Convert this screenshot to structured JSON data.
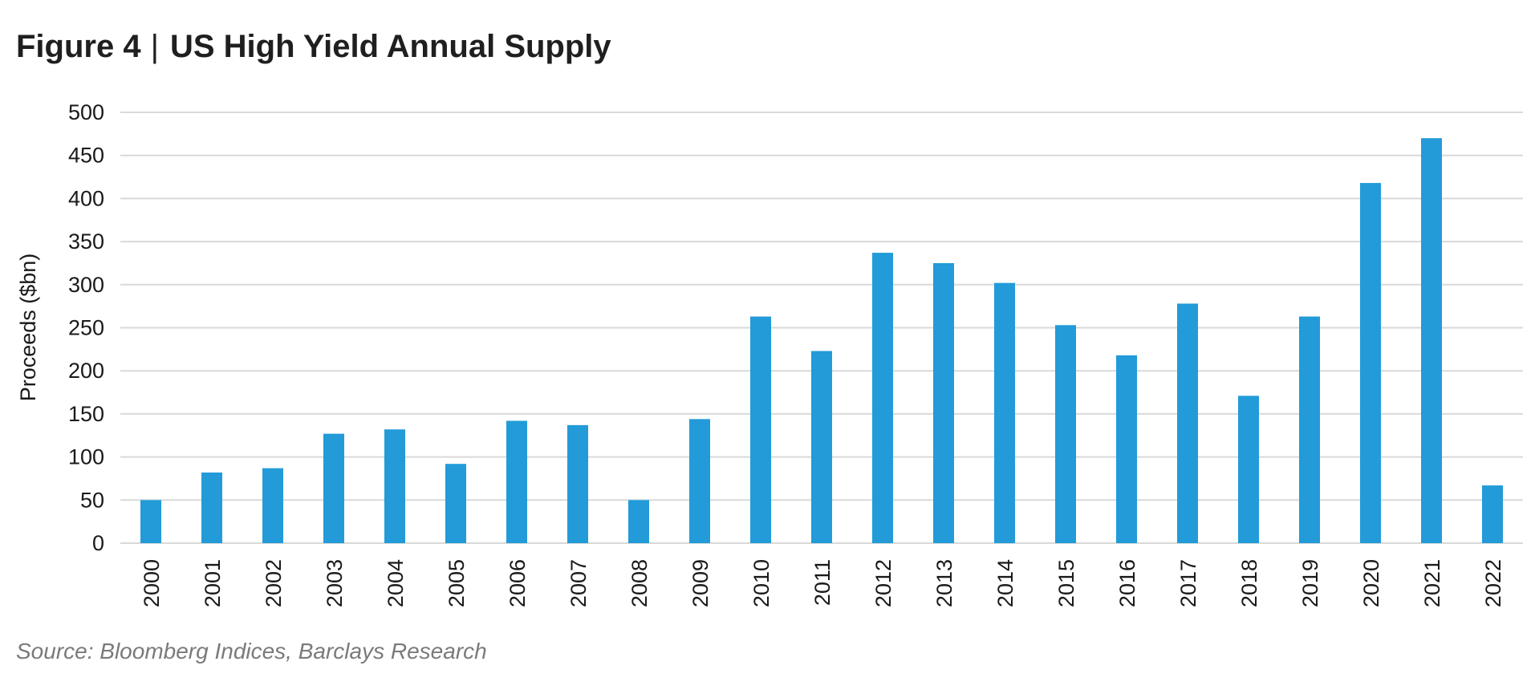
{
  "title": {
    "figure_label": "Figure 4",
    "separator": "|",
    "text": "US High Yield Annual Supply"
  },
  "source": "Source: Bloomberg Indices, Barclays Research",
  "colors": {
    "bar": "#229BD8",
    "grid": "#D9D9D9",
    "axis_text": "#1a1a1a"
  },
  "chart_data": {
    "type": "bar",
    "title": "US High Yield Annual Supply",
    "xlabel": "",
    "ylabel": "Proceeds ($bn)",
    "ylim": [
      0,
      500
    ],
    "yticks": [
      0,
      50,
      100,
      150,
      200,
      250,
      300,
      350,
      400,
      450,
      500
    ],
    "grid": true,
    "legend": "none",
    "categories": [
      "2000",
      "2001",
      "2002",
      "2003",
      "2004",
      "2005",
      "2006",
      "2007",
      "2008",
      "2009",
      "2010",
      "2011",
      "2012",
      "2013",
      "2014",
      "2015",
      "2016",
      "2017",
      "2018",
      "2019",
      "2020",
      "2021",
      "2022"
    ],
    "series": [
      {
        "values": [
          50,
          82,
          87,
          127,
          132,
          92,
          142,
          137,
          50,
          144,
          263,
          223,
          337,
          325,
          302,
          253,
          218,
          278,
          171,
          263,
          418,
          470,
          67
        ]
      }
    ]
  }
}
